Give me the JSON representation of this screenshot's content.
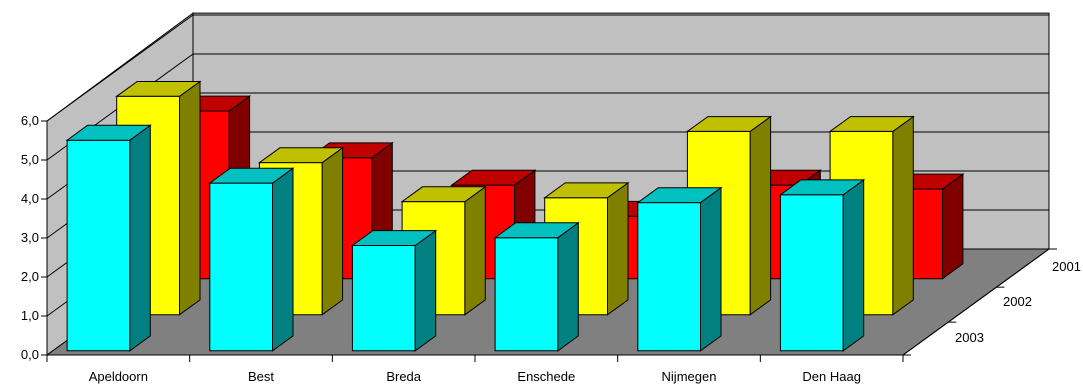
{
  "chart_data": {
    "type": "bar",
    "categories": [
      "Apeldoorn",
      "Best",
      "Breda",
      "Enschede",
      "Nijmegen",
      "Den Haag"
    ],
    "depth_labels": [
      "2001",
      "2002",
      "2003"
    ],
    "series": [
      {
        "name": "2001",
        "values": [
          4.3,
          3.1,
          2.4,
          1.6,
          2.4,
          2.3
        ],
        "color": "#ff0000"
      },
      {
        "name": "2002",
        "values": [
          5.6,
          3.9,
          2.9,
          3.0,
          4.7,
          4.7
        ],
        "color": "#ffff00"
      },
      {
        "name": "2003",
        "values": [
          5.4,
          4.3,
          2.7,
          2.9,
          3.8,
          4.0
        ],
        "color": "#00ffff"
      }
    ],
    "y_ticks": [
      "0,0",
      "1,0",
      "2,0",
      "3,0",
      "4,0",
      "5,0",
      "6,0"
    ],
    "ylim": [
      0,
      6
    ],
    "grid": true,
    "colors": {
      "wall": "#c0c0c0",
      "floor": "#808080",
      "red_side": "#800000",
      "red_top": "#c00000",
      "yellow_side": "#808000",
      "yellow_top": "#c0c000",
      "cyan_side": "#008080",
      "cyan_top": "#00c0c0"
    }
  }
}
